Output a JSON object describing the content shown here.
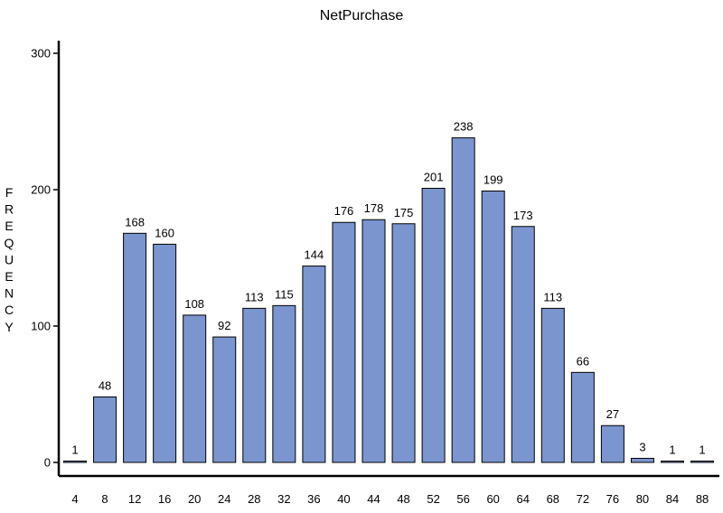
{
  "chart_data": {
    "type": "bar",
    "title": "NetPurchase",
    "ylabel": "FREQUENCY",
    "xlabel": "",
    "categories": [
      "4",
      "8",
      "12",
      "16",
      "20",
      "24",
      "28",
      "32",
      "36",
      "40",
      "44",
      "48",
      "52",
      "56",
      "60",
      "64",
      "68",
      "72",
      "76",
      "80",
      "84",
      "88"
    ],
    "values": [
      1,
      48,
      168,
      160,
      108,
      92,
      113,
      115,
      144,
      176,
      178,
      175,
      201,
      238,
      199,
      173,
      113,
      66,
      27,
      3,
      1,
      1
    ],
    "ylim": [
      0,
      300
    ],
    "yticks": [
      "0",
      "100",
      "200",
      "300"
    ],
    "grid": false,
    "legend": "none",
    "bar_color": "#7b95cf"
  }
}
